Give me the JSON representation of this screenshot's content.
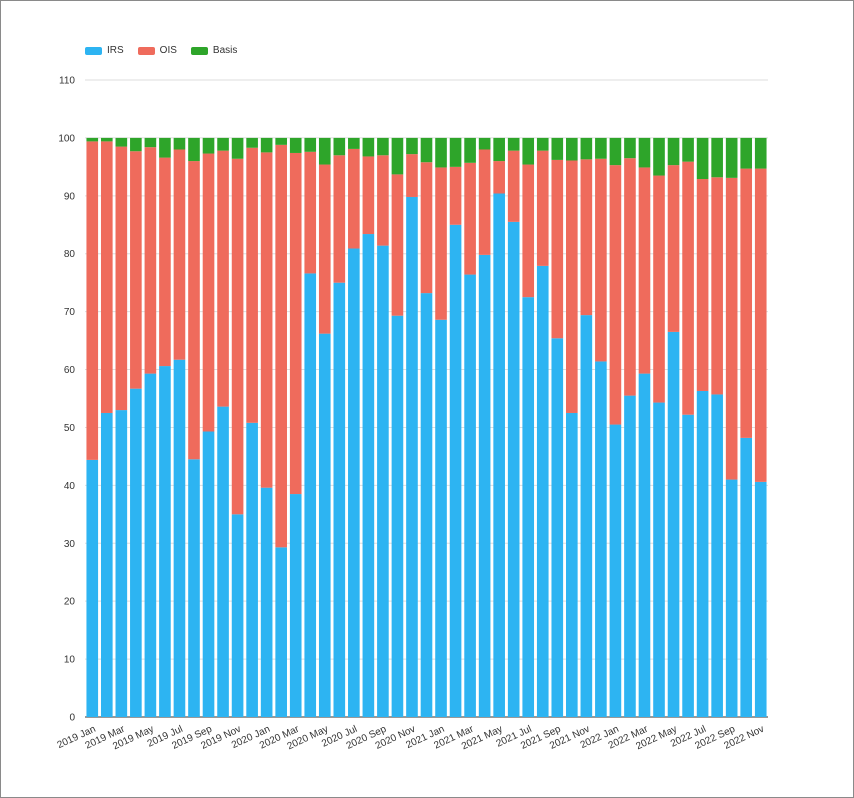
{
  "legend": [
    {
      "label": "IRS",
      "color": "#2db4f2"
    },
    {
      "label": "OIS",
      "color": "#ef6b5c"
    },
    {
      "label": "Basis",
      "color": "#2ea52a"
    }
  ],
  "chart_data": {
    "type": "bar",
    "stacked": true,
    "ylim": [
      0,
      110
    ],
    "yticks": [
      0,
      10,
      20,
      30,
      40,
      50,
      60,
      70,
      80,
      90,
      100,
      110
    ],
    "grid": true,
    "legend_position": "top-left",
    "categories": [
      "2019 Jan",
      "2019 Feb",
      "2019 Mar",
      "2019 Apr",
      "2019 May",
      "2019 Jun",
      "2019 Jul",
      "2019 Aug",
      "2019 Sep",
      "2019 Oct",
      "2019 Nov",
      "2019 Dec",
      "2020 Jan",
      "2020 Feb",
      "2020 Mar",
      "2020 Apr",
      "2020 May",
      "2020 Jun",
      "2020 Jul",
      "2020 Aug",
      "2020 Sep",
      "2020 Oct",
      "2020 Nov",
      "2020 Dec",
      "2021 Jan",
      "2021 Feb",
      "2021 Mar",
      "2021 Apr",
      "2021 May",
      "2021 Jun",
      "2021 Jul",
      "2021 Aug",
      "2021 Sep",
      "2021 Oct",
      "2021 Nov",
      "2021 Dec",
      "2022 Jan",
      "2022 Feb",
      "2022 Mar",
      "2022 Apr",
      "2022 May",
      "2022 Jun",
      "2022 Jul",
      "2022 Aug",
      "2022 Sep",
      "2022 Oct",
      "2022 Nov"
    ],
    "xtick_labels": [
      "2019 Jan",
      "",
      "2019 Mar",
      "",
      "2019 May",
      "",
      "2019 Jul",
      "",
      "2019 Sep",
      "",
      "2019 Nov",
      "",
      "2020 Jan",
      "",
      "2020 Mar",
      "",
      "2020 May",
      "",
      "2020 Jul",
      "",
      "2020 Sep",
      "",
      "2020 Nov",
      "",
      "2021 Jan",
      "",
      "2021 Mar",
      "",
      "2021 May",
      "",
      "2021 Jul",
      "",
      "2021 Sep",
      "",
      "2021 Nov",
      "",
      "2022 Jan",
      "",
      "2022 Mar",
      "",
      "2022 May",
      "",
      "2022 Jul",
      "",
      "2022 Sep",
      "",
      "2022 Nov"
    ],
    "series": [
      {
        "name": "IRS",
        "color": "#2db4f2",
        "values": [
          44.4,
          52.5,
          53.0,
          56.7,
          59.3,
          60.6,
          61.7,
          44.5,
          49.3,
          53.6,
          35.0,
          50.8,
          39.6,
          29.3,
          38.5,
          76.6,
          66.2,
          75.0,
          80.9,
          83.4,
          81.4,
          69.3,
          89.8,
          73.2,
          68.6,
          85.0,
          76.4,
          79.8,
          90.4,
          85.5,
          72.5,
          77.9,
          65.4,
          52.5,
          69.4,
          61.4,
          50.5,
          55.5,
          59.3,
          54.3,
          66.5,
          52.2,
          56.3,
          55.7,
          41.0,
          48.2,
          40.6
        ]
      },
      {
        "name": "OIS",
        "color": "#ef6b5c",
        "values": [
          55.0,
          46.9,
          45.5,
          41.0,
          39.1,
          36.0,
          36.3,
          51.5,
          48.0,
          44.2,
          61.4,
          47.5,
          57.9,
          69.5,
          58.9,
          21.0,
          29.2,
          22.0,
          17.2,
          13.4,
          15.6,
          24.4,
          7.4,
          22.6,
          26.3,
          10.0,
          19.3,
          18.2,
          5.6,
          12.3,
          22.9,
          19.9,
          30.8,
          43.6,
          26.9,
          35.0,
          44.8,
          41.0,
          35.6,
          39.2,
          28.8,
          43.7,
          36.6,
          37.5,
          52.1,
          46.5,
          54.1
        ]
      },
      {
        "name": "Basis",
        "color": "#2ea52a",
        "values": [
          0.6,
          0.6,
          1.5,
          2.3,
          1.6,
          3.4,
          2.0,
          4.0,
          2.7,
          2.2,
          3.6,
          1.7,
          2.5,
          1.2,
          2.6,
          2.4,
          4.6,
          3.0,
          1.9,
          3.2,
          3.0,
          6.3,
          2.8,
          4.2,
          5.1,
          5.0,
          4.3,
          2.0,
          4.0,
          2.2,
          4.6,
          2.2,
          3.8,
          3.9,
          3.7,
          3.6,
          4.7,
          3.5,
          5.1,
          6.5,
          4.7,
          4.1,
          7.1,
          6.8,
          6.9,
          5.3,
          5.3
        ]
      }
    ]
  }
}
